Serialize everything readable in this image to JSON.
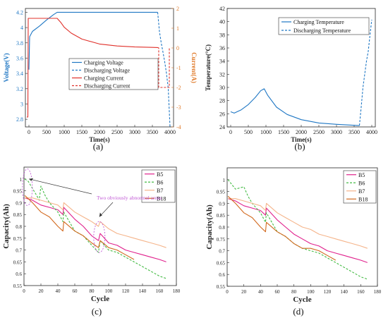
{
  "chart_data": [
    {
      "panel": "(a)",
      "type": "line",
      "xlabel": "Time(s)",
      "ylabel": "Voltage(V)",
      "y2label": "Current(A)",
      "xlim": [
        -100,
        4100
      ],
      "ylim": [
        2.7,
        4.25
      ],
      "y2lim": [
        -4,
        2
      ],
      "xticks": [
        "0",
        "500",
        "1000",
        "1500",
        "2000",
        "2500",
        "3000",
        "3500",
        "4000"
      ],
      "yticks": [
        "2.8",
        "3",
        "3.2",
        "3.4",
        "3.6",
        "3.8",
        "4",
        "4.2"
      ],
      "y2ticks": [
        "-4",
        "-3",
        "-2",
        "-1",
        "0",
        "1",
        "2"
      ],
      "legend_position": "center-right",
      "series": [
        {
          "name": "Charging Voltage",
          "axis": "left",
          "style": "solid",
          "color": "#1f77c4",
          "x": [
            0,
            20,
            100,
            300,
            500,
            700,
            800,
            900,
            1500,
            2500,
            3500,
            3650
          ],
          "y": [
            3.45,
            3.88,
            3.95,
            4.02,
            4.1,
            4.17,
            4.2,
            4.2,
            4.2,
            4.2,
            4.2,
            4.2
          ]
        },
        {
          "name": "Discharging Voltage",
          "axis": "left",
          "style": "dashed",
          "color": "#1f77c4",
          "x": [
            3650,
            3700,
            3750,
            3800,
            3850,
            3900,
            3950,
            3980,
            4000
          ],
          "y": [
            4.2,
            3.95,
            3.8,
            3.68,
            3.55,
            3.4,
            3.2,
            2.9,
            2.7
          ]
        },
        {
          "name": "Charging Current",
          "axis": "right",
          "style": "solid",
          "color": "#e0302a",
          "x": [
            -60,
            -30,
            -20,
            0,
            10,
            800,
            900,
            1000,
            1200,
            1500,
            2000,
            2500,
            3000,
            3500,
            3650
          ],
          "y": [
            -3.5,
            -3.5,
            1.5,
            1.5,
            1.5,
            1.5,
            1.3,
            1.05,
            0.75,
            0.45,
            0.2,
            0.1,
            0.05,
            0.03,
            0.02
          ]
        },
        {
          "name": "Discharging Current",
          "axis": "right",
          "style": "dashed",
          "color": "#e0302a",
          "x": [
            3650,
            3680,
            3680,
            3980,
            3980,
            4000
          ],
          "y": [
            0.02,
            0.0,
            -2.0,
            -2.0,
            0.0,
            0.0
          ]
        }
      ]
    },
    {
      "panel": "(b)",
      "type": "line",
      "xlabel": "Time(s)",
      "ylabel": "Temperature(°C)",
      "xlim": [
        -100,
        4100
      ],
      "ylim": [
        24,
        42
      ],
      "xticks": [
        "0",
        "500",
        "1000",
        "1500",
        "2000",
        "2500",
        "3000",
        "3500",
        "4000"
      ],
      "yticks": [
        "24",
        "26",
        "28",
        "30",
        "32",
        "34",
        "36",
        "38",
        "40",
        "42"
      ],
      "legend_position": "top-right",
      "series": [
        {
          "name": "Charging Temperature",
          "style": "solid",
          "color": "#1f77c4",
          "x": [
            0,
            100,
            300,
            500,
            700,
            850,
            950,
            1050,
            1300,
            1600,
            2000,
            2500,
            3000,
            3500,
            3650
          ],
          "y": [
            26.3,
            26.1,
            26.6,
            27.4,
            28.5,
            29.5,
            29.8,
            28.8,
            27.0,
            25.9,
            25.1,
            24.6,
            24.4,
            24.25,
            24.2
          ]
        },
        {
          "name": "Discharging Temperature",
          "style": "dashed",
          "color": "#1f77c4",
          "x": [
            3650,
            3700,
            3750,
            3800,
            3850,
            3900,
            3950,
            4000
          ],
          "y": [
            24.2,
            27.0,
            30.0,
            32.0,
            34.0,
            35.5,
            38.0,
            40.3
          ]
        }
      ]
    },
    {
      "panel": "(c)",
      "type": "line",
      "xlabel": "Cycle",
      "ylabel": "Capacity(Ah)",
      "xlim": [
        0,
        180
      ],
      "ylim": [
        0.55,
        1.05
      ],
      "xticks": [
        "0",
        "20",
        "40",
        "60",
        "80",
        "100",
        "120",
        "140",
        "160",
        "180"
      ],
      "yticks": [
        "0.55",
        "0.6",
        "0.65",
        "0.7",
        "0.75",
        "0.8",
        "0.85",
        "0.9",
        "0.95",
        "1"
      ],
      "legend_position": "top-right",
      "annotation": "Two obviously abnormal areas",
      "series": [
        {
          "name": "B5",
          "style": "solid",
          "color": "#e0208c",
          "x": [
            1,
            10,
            20,
            30,
            40,
            46,
            47,
            60,
            70,
            80,
            88,
            90,
            100,
            110,
            120,
            130,
            140,
            150,
            160,
            168
          ],
          "y": [
            0.92,
            0.91,
            0.89,
            0.88,
            0.87,
            0.85,
            0.88,
            0.83,
            0.8,
            0.76,
            0.74,
            0.77,
            0.73,
            0.72,
            0.7,
            0.69,
            0.68,
            0.67,
            0.66,
            0.65
          ]
        },
        {
          "name": "B6",
          "style": "dashed",
          "color": "#44bb44",
          "x": [
            1,
            5,
            10,
            15,
            18,
            20,
            25,
            30,
            40,
            46,
            47,
            60,
            70,
            80,
            88,
            90,
            100,
            110,
            120,
            130,
            140,
            150,
            160,
            168
          ],
          "y": [
            1.0,
            0.99,
            0.96,
            0.93,
            0.91,
            0.97,
            0.93,
            0.9,
            0.86,
            0.82,
            0.86,
            0.78,
            0.76,
            0.72,
            0.69,
            0.74,
            0.7,
            0.69,
            0.67,
            0.65,
            0.63,
            0.61,
            0.59,
            0.58
          ]
        },
        {
          "name": "B7",
          "style": "solid",
          "color": "#f5b48a",
          "x": [
            1,
            10,
            20,
            30,
            40,
            46,
            47,
            60,
            70,
            80,
            88,
            90,
            100,
            110,
            120,
            130,
            140,
            150,
            160,
            168
          ],
          "y": [
            0.92,
            0.92,
            0.91,
            0.9,
            0.89,
            0.87,
            0.9,
            0.86,
            0.84,
            0.82,
            0.8,
            0.82,
            0.79,
            0.77,
            0.76,
            0.75,
            0.74,
            0.73,
            0.72,
            0.71
          ]
        },
        {
          "name": "B18",
          "style": "solid",
          "color": "#d2691e",
          "x": [
            1,
            10,
            20,
            30,
            40,
            46,
            47,
            60,
            70,
            80,
            88,
            90,
            100,
            110,
            120,
            130
          ],
          "y": [
            0.93,
            0.9,
            0.86,
            0.84,
            0.8,
            0.78,
            0.82,
            0.78,
            0.76,
            0.73,
            0.71,
            0.74,
            0.71,
            0.7,
            0.68,
            0.66
          ]
        }
      ]
    },
    {
      "panel": "(d)",
      "type": "line",
      "xlabel": "Cycle",
      "ylabel": "Capacity(Ah)",
      "xlim": [
        0,
        180
      ],
      "ylim": [
        0.55,
        1.05
      ],
      "xticks": [
        "0",
        "20",
        "40",
        "60",
        "80",
        "100",
        "120",
        "140",
        "160",
        "180"
      ],
      "yticks": [
        "0.55",
        "0.6",
        "0.65",
        "0.7",
        "0.75",
        "0.8",
        "0.85",
        "0.9",
        "0.95",
        "1"
      ],
      "legend_position": "top-right",
      "series": [
        {
          "name": "B5",
          "style": "solid",
          "color": "#e0208c",
          "x": [
            1,
            10,
            20,
            30,
            40,
            46,
            47,
            60,
            70,
            80,
            90,
            100,
            110,
            120,
            130,
            140,
            150,
            160,
            168
          ],
          "y": [
            0.92,
            0.91,
            0.89,
            0.88,
            0.87,
            0.85,
            0.88,
            0.83,
            0.8,
            0.77,
            0.75,
            0.73,
            0.72,
            0.7,
            0.69,
            0.68,
            0.67,
            0.66,
            0.65
          ]
        },
        {
          "name": "B6",
          "style": "dashed",
          "color": "#44bb44",
          "x": [
            1,
            10,
            20,
            25,
            30,
            40,
            46,
            47,
            60,
            70,
            80,
            90,
            100,
            110,
            120,
            130,
            140,
            150,
            160,
            168
          ],
          "y": [
            1.0,
            0.96,
            0.97,
            0.93,
            0.9,
            0.86,
            0.82,
            0.86,
            0.78,
            0.76,
            0.73,
            0.71,
            0.7,
            0.69,
            0.67,
            0.65,
            0.63,
            0.61,
            0.59,
            0.58
          ]
        },
        {
          "name": "B7",
          "style": "solid",
          "color": "#f5b48a",
          "x": [
            1,
            10,
            20,
            30,
            40,
            46,
            47,
            60,
            70,
            80,
            90,
            100,
            110,
            120,
            130,
            140,
            150,
            160,
            168
          ],
          "y": [
            0.92,
            0.92,
            0.91,
            0.9,
            0.89,
            0.87,
            0.9,
            0.86,
            0.84,
            0.82,
            0.8,
            0.79,
            0.77,
            0.76,
            0.75,
            0.74,
            0.73,
            0.72,
            0.71
          ]
        },
        {
          "name": "B18",
          "style": "solid",
          "color": "#d2691e",
          "x": [
            1,
            10,
            20,
            30,
            40,
            46,
            47,
            60,
            70,
            80,
            90,
            100,
            110,
            120,
            130
          ],
          "y": [
            0.93,
            0.9,
            0.86,
            0.84,
            0.8,
            0.78,
            0.82,
            0.78,
            0.76,
            0.73,
            0.71,
            0.71,
            0.7,
            0.68,
            0.66
          ]
        }
      ]
    }
  ]
}
